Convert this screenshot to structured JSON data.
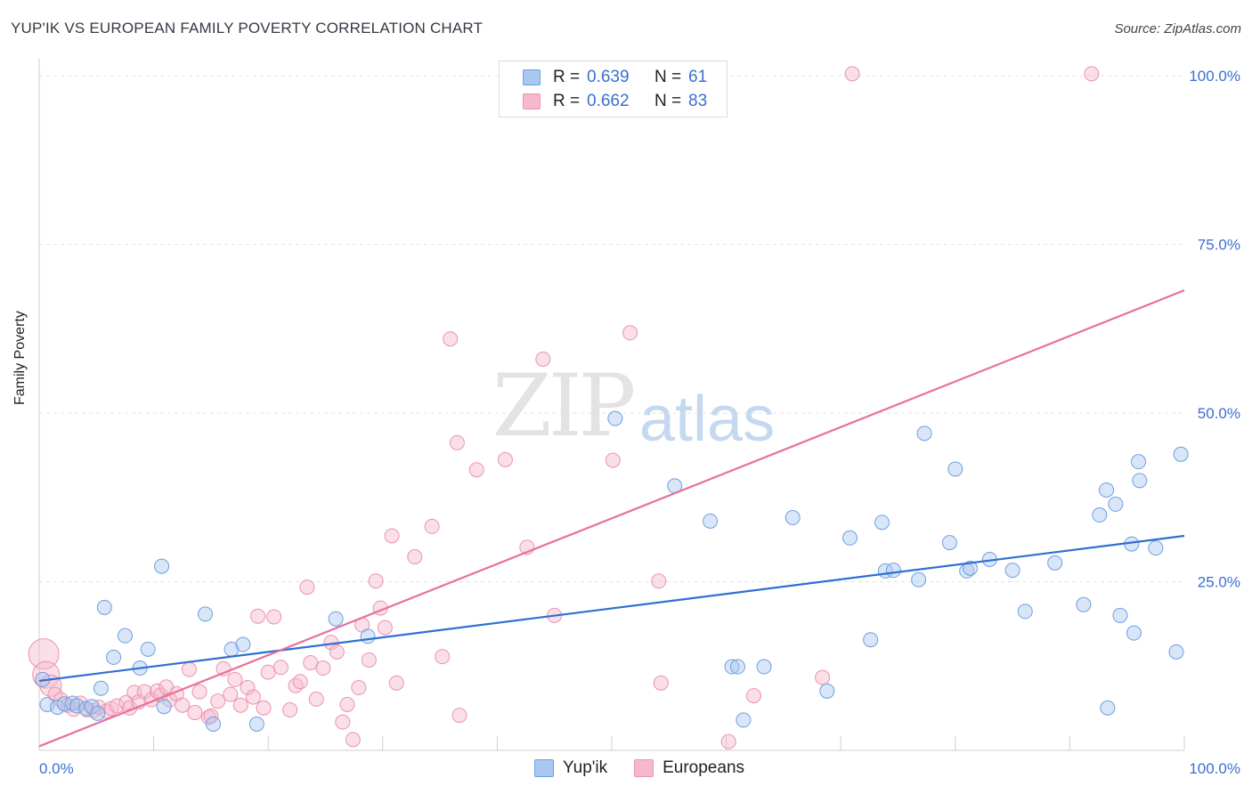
{
  "header": {
    "title": "YUP'IK VS EUROPEAN FAMILY POVERTY CORRELATION CHART",
    "source": "Source: ZipAtlas.com"
  },
  "watermark": {
    "zip": "ZIP",
    "atlas": "atlas"
  },
  "legend": {
    "rows": [
      {
        "r_label": "R =",
        "r_value": "0.639",
        "n_label": "N =",
        "n_value": "61"
      },
      {
        "r_label": "R =",
        "r_value": "0.662",
        "n_label": "N =",
        "n_value": "83"
      }
    ]
  },
  "bottom_legend": {
    "series1": "Yup'ik",
    "series2": "Europeans"
  },
  "colors": {
    "blue_fill": "#a9c8f0",
    "blue_stroke": "#6f9fdf",
    "blue_line": "#2f6fd1",
    "pink_fill": "#f6b8cb",
    "pink_stroke": "#ea93ae",
    "pink_line": "#e8709a",
    "tick_label": "#3a6fd0",
    "grid": "#e2e2e2"
  },
  "chart_data": {
    "type": "scatter",
    "title": "YUP'IK VS EUROPEAN FAMILY POVERTY CORRELATION CHART",
    "xlabel": "",
    "ylabel": "Family Poverty",
    "xlim": [
      0,
      100
    ],
    "ylim": [
      0,
      102
    ],
    "x_tick_labels": [
      {
        "value": 0,
        "label": "0.0%"
      },
      {
        "value": 100,
        "label": "100.0%"
      }
    ],
    "y_tick_labels": [
      {
        "value": 25,
        "label": "25.0%"
      },
      {
        "value": 50,
        "label": "50.0%"
      },
      {
        "value": 75,
        "label": "75.0%"
      },
      {
        "value": 100,
        "label": "100.0%"
      }
    ],
    "grid": true,
    "legend_position": "top-center",
    "series": [
      {
        "name": "Yup'ik",
        "r": 0.639,
        "n": 61,
        "trend": {
          "x0": 0,
          "y0": 10.3,
          "x1": 100,
          "y1": 31.8
        },
        "points": [
          [
            0.3,
            10.5
          ],
          [
            0.7,
            6.8
          ],
          [
            1.6,
            6.4
          ],
          [
            2.2,
            6.9
          ],
          [
            2.9,
            7.0
          ],
          [
            3.3,
            6.6
          ],
          [
            4.1,
            6.2
          ],
          [
            4.6,
            6.5
          ],
          [
            5.1,
            5.5
          ],
          [
            5.4,
            9.2
          ],
          [
            5.7,
            21.2
          ],
          [
            6.5,
            13.8
          ],
          [
            7.5,
            17.0
          ],
          [
            8.8,
            12.2
          ],
          [
            9.5,
            15.0
          ],
          [
            10.7,
            27.3
          ],
          [
            10.9,
            6.5
          ],
          [
            14.5,
            20.2
          ],
          [
            15.2,
            3.9
          ],
          [
            16.8,
            15.0
          ],
          [
            17.8,
            15.7
          ],
          [
            19.0,
            3.9
          ],
          [
            25.9,
            19.5
          ],
          [
            28.7,
            16.9
          ],
          [
            50.3,
            49.2
          ],
          [
            55.5,
            39.2
          ],
          [
            58.6,
            34.0
          ],
          [
            60.5,
            12.4
          ],
          [
            61.0,
            12.4
          ],
          [
            61.5,
            4.5
          ],
          [
            63.3,
            12.4
          ],
          [
            65.8,
            34.5
          ],
          [
            68.8,
            8.8
          ],
          [
            70.8,
            31.5
          ],
          [
            72.6,
            16.4
          ],
          [
            73.6,
            33.8
          ],
          [
            73.9,
            26.6
          ],
          [
            74.6,
            26.7
          ],
          [
            76.8,
            25.3
          ],
          [
            77.3,
            47.0
          ],
          [
            79.5,
            30.8
          ],
          [
            80.0,
            41.7
          ],
          [
            81.0,
            26.6
          ],
          [
            81.3,
            27.0
          ],
          [
            83.0,
            28.3
          ],
          [
            85.0,
            26.7
          ],
          [
            86.1,
            20.6
          ],
          [
            88.7,
            27.8
          ],
          [
            91.2,
            21.6
          ],
          [
            92.6,
            34.9
          ],
          [
            93.2,
            38.6
          ],
          [
            93.3,
            6.3
          ],
          [
            94.4,
            20.0
          ],
          [
            95.4,
            30.6
          ],
          [
            95.6,
            17.4
          ],
          [
            96.0,
            42.8
          ],
          [
            96.1,
            40.0
          ],
          [
            94.0,
            36.5
          ],
          [
            99.3,
            14.6
          ],
          [
            99.7,
            43.9
          ],
          [
            97.5,
            30.0
          ]
        ]
      },
      {
        "name": "Europeans",
        "r": 0.662,
        "n": 83,
        "trend": {
          "x0": 0,
          "y0": 0.6,
          "x1": 100,
          "y1": 68.2
        },
        "points": [
          [
            0.4,
            14.3
          ],
          [
            0.6,
            11.2
          ],
          [
            1.0,
            9.6
          ],
          [
            1.4,
            8.3
          ],
          [
            1.9,
            7.5
          ],
          [
            2.5,
            6.7
          ],
          [
            3.0,
            6.1
          ],
          [
            3.6,
            7.0
          ],
          [
            4.2,
            6.0
          ],
          [
            4.8,
            5.9
          ],
          [
            5.2,
            6.4
          ],
          [
            5.9,
            5.8
          ],
          [
            6.3,
            6.2
          ],
          [
            6.8,
            6.6
          ],
          [
            7.6,
            7.1
          ],
          [
            7.9,
            6.3
          ],
          [
            8.3,
            8.6
          ],
          [
            8.7,
            7.2
          ],
          [
            9.2,
            8.7
          ],
          [
            9.8,
            7.5
          ],
          [
            10.3,
            8.8
          ],
          [
            10.6,
            8.2
          ],
          [
            11.1,
            9.4
          ],
          [
            11.4,
            7.5
          ],
          [
            12.0,
            8.4
          ],
          [
            12.5,
            6.7
          ],
          [
            13.1,
            12.0
          ],
          [
            13.6,
            5.6
          ],
          [
            14.0,
            8.7
          ],
          [
            14.8,
            4.9
          ],
          [
            15.0,
            5.1
          ],
          [
            15.6,
            7.3
          ],
          [
            16.1,
            12.1
          ],
          [
            16.7,
            8.3
          ],
          [
            17.1,
            10.5
          ],
          [
            17.6,
            6.7
          ],
          [
            18.2,
            9.3
          ],
          [
            18.7,
            7.9
          ],
          [
            19.1,
            19.9
          ],
          [
            19.6,
            6.3
          ],
          [
            20.0,
            11.6
          ],
          [
            20.5,
            19.8
          ],
          [
            21.1,
            12.3
          ],
          [
            21.9,
            6.0
          ],
          [
            22.4,
            9.6
          ],
          [
            22.8,
            10.2
          ],
          [
            23.4,
            24.2
          ],
          [
            23.7,
            13.0
          ],
          [
            24.2,
            7.6
          ],
          [
            24.8,
            12.2
          ],
          [
            25.5,
            16.0
          ],
          [
            26.0,
            14.6
          ],
          [
            26.5,
            4.2
          ],
          [
            26.9,
            6.8
          ],
          [
            27.4,
            1.6
          ],
          [
            27.9,
            9.3
          ],
          [
            28.2,
            18.6
          ],
          [
            28.8,
            13.4
          ],
          [
            29.4,
            25.1
          ],
          [
            29.8,
            21.1
          ],
          [
            30.2,
            18.2
          ],
          [
            30.8,
            31.8
          ],
          [
            31.2,
            10.0
          ],
          [
            32.8,
            28.7
          ],
          [
            34.3,
            33.2
          ],
          [
            35.2,
            13.9
          ],
          [
            35.9,
            61.0
          ],
          [
            36.5,
            45.6
          ],
          [
            36.7,
            5.2
          ],
          [
            38.2,
            41.6
          ],
          [
            40.7,
            43.1
          ],
          [
            42.6,
            30.1
          ],
          [
            44.0,
            58.0
          ],
          [
            45.0,
            20.0
          ],
          [
            50.1,
            43.0
          ],
          [
            51.6,
            61.9
          ],
          [
            54.1,
            25.1
          ],
          [
            54.3,
            10.0
          ],
          [
            60.2,
            1.3
          ],
          [
            62.4,
            8.1
          ],
          [
            68.4,
            10.8
          ],
          [
            71.0,
            100.3
          ],
          [
            91.9,
            100.3
          ]
        ]
      }
    ]
  }
}
